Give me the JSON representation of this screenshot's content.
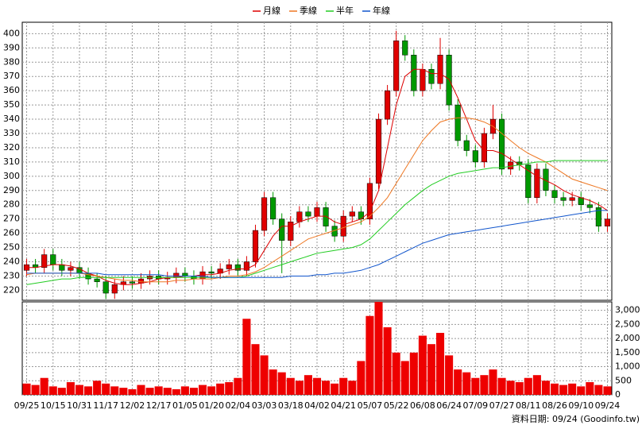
{
  "chart_data": {
    "type": "candlestick",
    "legend_position": "top",
    "grid": true,
    "up_color": "#e00000",
    "down_color": "#009900",
    "volume_color": "#ee0000",
    "source": "資料日期: 09/24  (Goodinfo.tw)",
    "categories": [
      "09/25",
      null,
      null,
      "10/15",
      null,
      null,
      "10/31",
      null,
      null,
      "11/17",
      null,
      null,
      "12/02",
      null,
      null,
      "12/17",
      null,
      null,
      "01/05",
      null,
      null,
      "01/20",
      null,
      null,
      "02/04",
      null,
      null,
      "03/03",
      null,
      null,
      "03/18",
      null,
      null,
      "04/02",
      null,
      null,
      "04/21",
      null,
      null,
      "05/07",
      null,
      null,
      "05/22",
      null,
      null,
      "06/08",
      null,
      null,
      "06/24",
      null,
      null,
      "07/09",
      null,
      null,
      "07/27",
      null,
      null,
      "08/11",
      null,
      null,
      "08/26",
      null,
      null,
      "09/10",
      null,
      null,
      "09/24"
    ],
    "open": [
      234,
      238,
      236,
      245,
      238,
      234,
      236,
      232,
      228,
      226,
      218,
      224,
      226,
      225,
      228,
      230,
      228,
      229,
      232,
      230,
      228,
      233,
      232,
      235,
      238,
      234,
      240,
      262,
      285,
      270,
      255,
      268,
      275,
      272,
      278,
      265,
      258,
      272,
      275,
      270,
      295,
      340,
      360,
      395,
      385,
      360,
      375,
      365,
      385,
      350,
      325,
      318,
      310,
      330,
      340,
      305,
      310,
      308,
      285,
      305,
      290,
      285,
      283,
      285,
      280,
      278,
      265
    ],
    "high": [
      242,
      242,
      249,
      249,
      242,
      240,
      240,
      236,
      232,
      230,
      228,
      230,
      230,
      232,
      234,
      234,
      233,
      236,
      236,
      234,
      237,
      237,
      239,
      242,
      242,
      244,
      266,
      289,
      289,
      274,
      272,
      279,
      279,
      282,
      282,
      269,
      276,
      279,
      279,
      299,
      344,
      364,
      402,
      399,
      389,
      379,
      379,
      397,
      389,
      354,
      329,
      322,
      334,
      350,
      344,
      314,
      314,
      312,
      309,
      309,
      294,
      289,
      289,
      289,
      284,
      282,
      274
    ],
    "low": [
      230,
      232,
      232,
      234,
      230,
      230,
      228,
      224,
      222,
      214,
      214,
      220,
      221,
      221,
      224,
      224,
      224,
      225,
      226,
      224,
      224,
      228,
      228,
      231,
      230,
      230,
      236,
      258,
      266,
      232,
      251,
      264,
      268,
      268,
      261,
      254,
      254,
      268,
      266,
      266,
      291,
      336,
      356,
      381,
      356,
      356,
      361,
      361,
      346,
      321,
      314,
      306,
      306,
      326,
      301,
      301,
      304,
      281,
      281,
      286,
      281,
      279,
      279,
      276,
      274,
      261,
      261
    ],
    "close": [
      238,
      236,
      245,
      238,
      234,
      236,
      232,
      228,
      226,
      218,
      224,
      226,
      225,
      228,
      230,
      228,
      229,
      232,
      230,
      228,
      233,
      232,
      235,
      238,
      234,
      240,
      262,
      285,
      270,
      255,
      268,
      275,
      272,
      278,
      265,
      258,
      272,
      275,
      270,
      295,
      340,
      360,
      395,
      385,
      360,
      375,
      365,
      385,
      350,
      325,
      318,
      310,
      330,
      340,
      305,
      310,
      308,
      285,
      305,
      290,
      285,
      283,
      285,
      280,
      278,
      265,
      270
    ],
    "volume": [
      400,
      350,
      600,
      300,
      250,
      450,
      350,
      300,
      500,
      400,
      300,
      250,
      200,
      350,
      250,
      300,
      250,
      200,
      300,
      250,
      350,
      300,
      400,
      450,
      600,
      2700,
      1800,
      1400,
      900,
      800,
      600,
      500,
      700,
      600,
      500,
      400,
      600,
      500,
      1200,
      2800,
      3300,
      2400,
      1500,
      1200,
      1500,
      2100,
      1800,
      2200,
      1400,
      900,
      800,
      600,
      700,
      900,
      600,
      500,
      450,
      600,
      700,
      500,
      400,
      350,
      400,
      300,
      450,
      350,
      300
    ],
    "series": [
      {
        "name": "月線",
        "color": "#dd0000",
        "values": [
          236,
          236,
          237,
          238,
          238,
          237,
          235,
          232,
          230,
          227,
          225,
          224,
          224,
          225,
          226,
          228,
          229,
          229,
          230,
          230,
          231,
          231,
          232,
          234,
          235,
          235,
          238,
          248,
          258,
          265,
          265,
          268,
          270,
          272,
          272,
          268,
          266,
          268,
          270,
          275,
          290,
          320,
          350,
          370,
          375,
          375,
          372,
          372,
          368,
          355,
          340,
          325,
          318,
          318,
          316,
          312,
          308,
          304,
          300,
          297,
          294,
          290,
          287,
          285,
          283,
          280,
          276
        ]
      },
      {
        "name": "季線",
        "color": "#ee7722",
        "values": [
          231,
          232,
          232,
          232,
          232,
          232,
          232,
          231,
          230,
          229,
          228,
          227,
          227,
          226,
          226,
          226,
          226,
          227,
          227,
          228,
          228,
          228,
          229,
          230,
          230,
          231,
          233,
          236,
          240,
          244,
          248,
          252,
          256,
          258,
          260,
          262,
          264,
          266,
          268,
          272,
          278,
          285,
          295,
          305,
          315,
          325,
          332,
          338,
          340,
          341,
          341,
          340,
          338,
          335,
          330,
          325,
          320,
          316,
          313,
          310,
          306,
          302,
          298,
          296,
          294,
          292,
          290
        ]
      },
      {
        "name": "半年",
        "color": "#22cc22",
        "values": [
          224,
          225,
          226,
          227,
          228,
          228,
          229,
          229,
          229,
          229,
          229,
          229,
          229,
          229,
          229,
          229,
          229,
          229,
          229,
          229,
          229,
          229,
          229,
          229,
          229,
          230,
          232,
          234,
          236,
          238,
          240,
          242,
          244,
          246,
          247,
          248,
          249,
          250,
          252,
          256,
          262,
          268,
          274,
          280,
          285,
          290,
          294,
          297,
          300,
          302,
          303,
          304,
          305,
          306,
          306,
          307,
          308,
          309,
          310,
          310,
          311,
          311,
          311,
          311,
          311,
          311,
          311
        ]
      },
      {
        "name": "年線",
        "color": "#1155cc",
        "values": [
          232,
          232,
          232,
          232,
          232,
          232,
          232,
          232,
          232,
          231,
          231,
          231,
          231,
          231,
          231,
          231,
          230,
          230,
          230,
          230,
          230,
          229,
          229,
          229,
          229,
          229,
          229,
          229,
          229,
          229,
          230,
          230,
          230,
          231,
          231,
          232,
          232,
          233,
          234,
          236,
          238,
          241,
          244,
          247,
          250,
          253,
          255,
          257,
          259,
          260,
          261,
          262,
          263,
          264,
          265,
          266,
          267,
          268,
          269,
          270,
          271,
          272,
          273,
          274,
          275,
          276,
          276
        ]
      }
    ],
    "ylim": [
      213,
      408
    ],
    "yticks": [
      220,
      230,
      240,
      250,
      260,
      270,
      280,
      290,
      300,
      310,
      320,
      330,
      340,
      350,
      360,
      370,
      380,
      390,
      400
    ],
    "y2lim": [
      0,
      3300
    ],
    "y2ticks": [
      0,
      500,
      {
        "value": 1000,
        "label": "1,000"
      },
      {
        "value": 1500,
        "label": "1,500"
      },
      {
        "value": 2000,
        "label": "2,000"
      },
      {
        "value": 2500,
        "label": "2,500"
      },
      {
        "value": 3000,
        "label": "3,000"
      }
    ]
  }
}
